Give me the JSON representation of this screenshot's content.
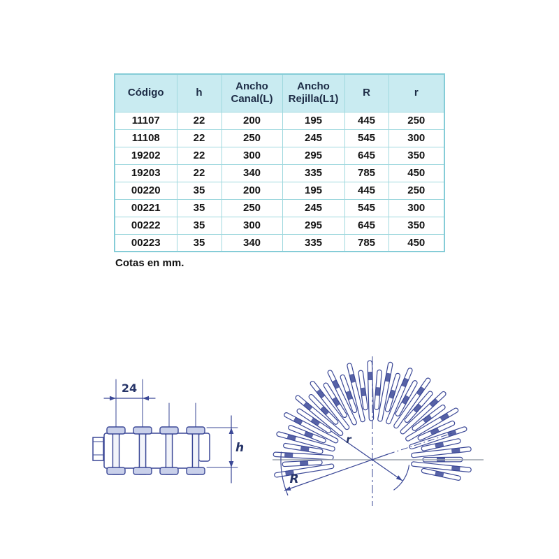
{
  "table": {
    "headers": [
      "Código",
      "h",
      "Ancho Canal(L)",
      "Ancho Rejilla(L1)",
      "R",
      "r"
    ],
    "rows": [
      [
        "11107",
        "22",
        "200",
        "195",
        "445",
        "250"
      ],
      [
        "11108",
        "22",
        "250",
        "245",
        "545",
        "300"
      ],
      [
        "19202",
        "22",
        "300",
        "295",
        "645",
        "350"
      ],
      [
        "19203",
        "22",
        "340",
        "335",
        "785",
        "450"
      ],
      [
        "00220",
        "35",
        "200",
        "195",
        "445",
        "250"
      ],
      [
        "00221",
        "35",
        "250",
        "245",
        "545",
        "300"
      ],
      [
        "00222",
        "35",
        "300",
        "295",
        "645",
        "350"
      ],
      [
        "00223",
        "35",
        "340",
        "335",
        "785",
        "450"
      ]
    ]
  },
  "note": "Cotas en mm.",
  "diagram_side": {
    "pitch_label": "24",
    "height_label": "h"
  },
  "diagram_curve": {
    "inner_radius_label": "r",
    "outer_radius_label": "R"
  },
  "colors": {
    "line": "#3a4796",
    "cap_fill": "#c9d0ea",
    "pin_fill": "#f2f4fa",
    "axis_gray": "#9aa2ab",
    "table_border": "#9fd8de",
    "header_bg": "#c9ebf1"
  }
}
